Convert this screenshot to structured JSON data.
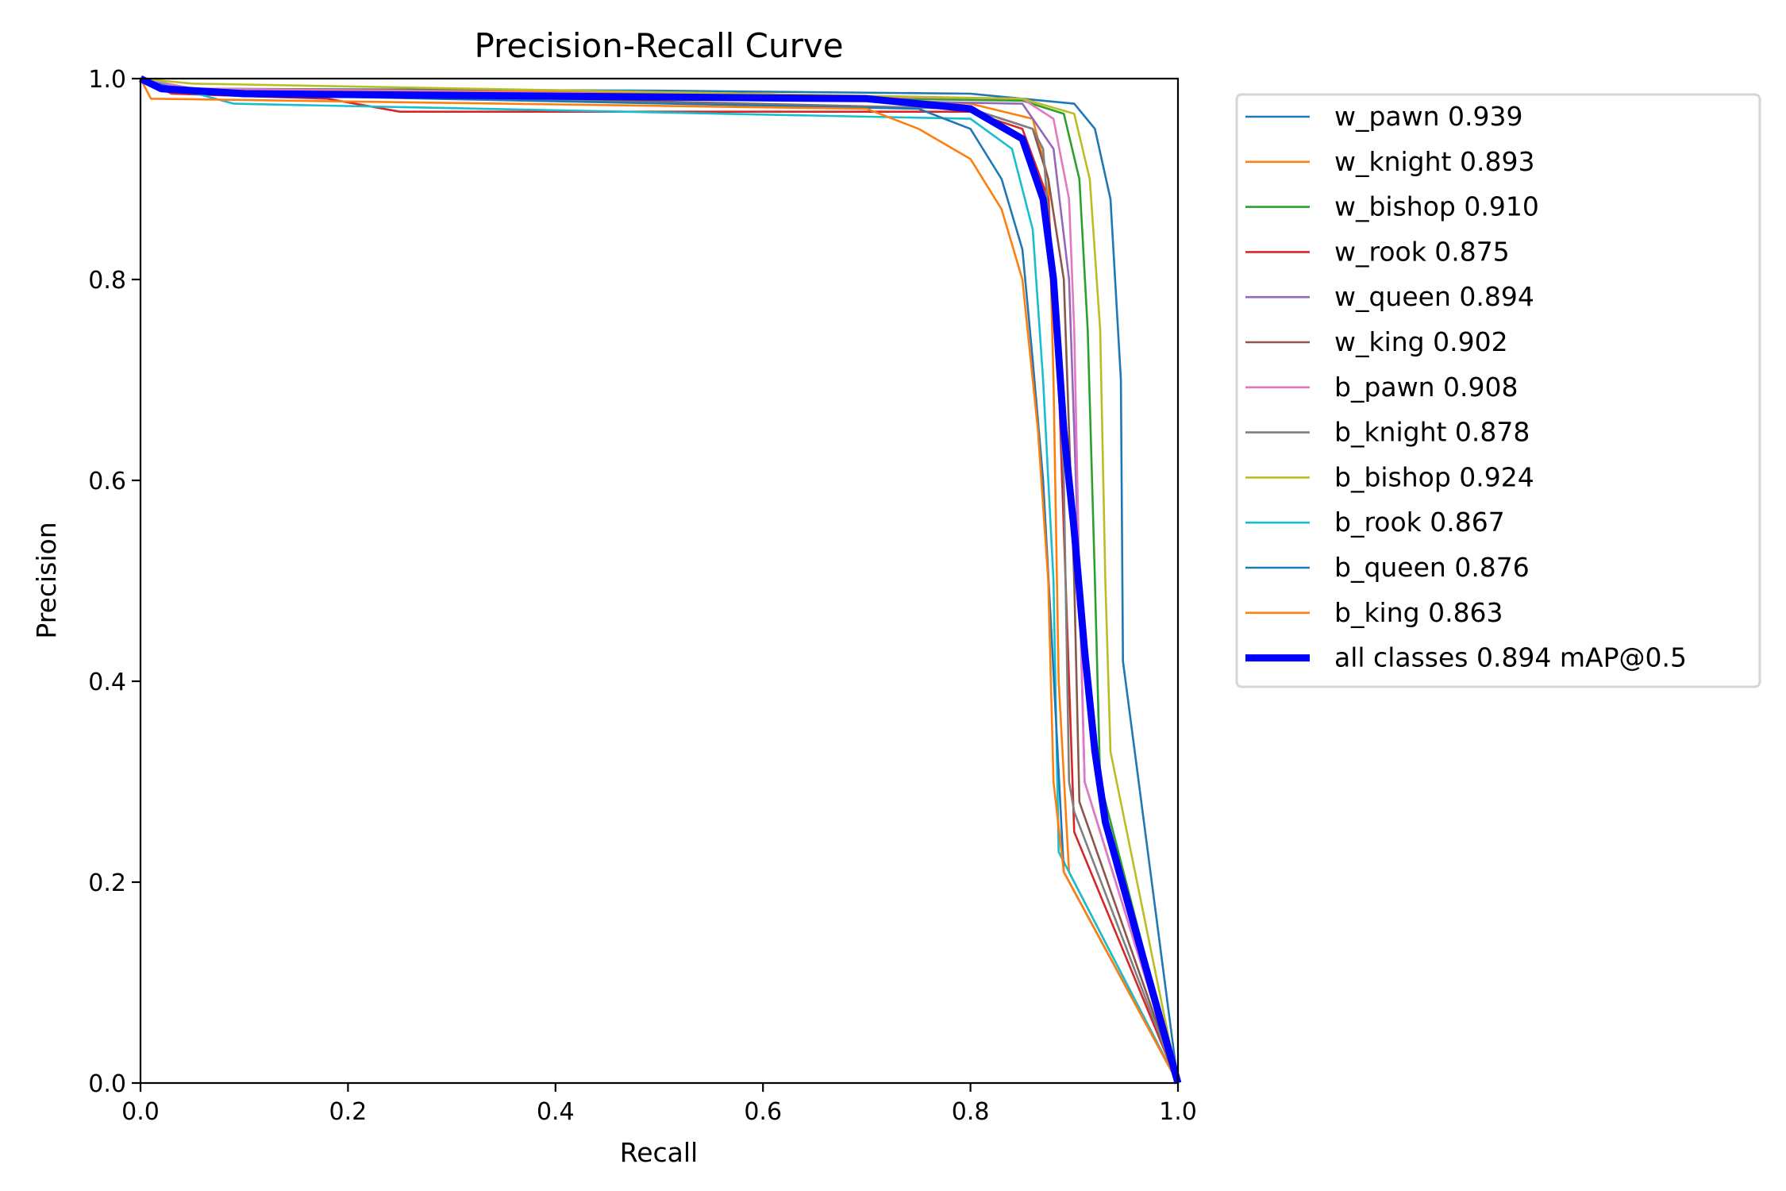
{
  "chart_data": {
    "type": "line",
    "title": "Precision-Recall Curve",
    "xlabel": "Recall",
    "ylabel": "Precision",
    "xlim": [
      0,
      1
    ],
    "ylim": [
      0,
      1
    ],
    "xticks": [
      "0.0",
      "0.2",
      "0.4",
      "0.6",
      "0.8",
      "1.0"
    ],
    "yticks": [
      "0.0",
      "0.2",
      "0.4",
      "0.6",
      "0.8",
      "1.0"
    ],
    "grid": false,
    "legend_position": "outside-right",
    "series": [
      {
        "name": "w_pawn 0.939",
        "color": "#1f77b4",
        "points": [
          [
            0,
            1
          ],
          [
            0.05,
            0.99
          ],
          [
            0.5,
            0.988
          ],
          [
            0.8,
            0.985
          ],
          [
            0.9,
            0.975
          ],
          [
            0.92,
            0.95
          ],
          [
            0.935,
            0.88
          ],
          [
            0.945,
            0.7
          ],
          [
            0.947,
            0.42
          ],
          [
            1,
            0
          ]
        ]
      },
      {
        "name": "w_knight 0.893",
        "color": "#ff7f0e",
        "points": [
          [
            0,
            1
          ],
          [
            0.05,
            0.99
          ],
          [
            0.6,
            0.985
          ],
          [
            0.8,
            0.975
          ],
          [
            0.86,
            0.96
          ],
          [
            0.875,
            0.9
          ],
          [
            0.88,
            0.7
          ],
          [
            0.885,
            0.4
          ],
          [
            0.895,
            0.21
          ],
          [
            1,
            0
          ]
        ]
      },
      {
        "name": "w_bishop 0.910",
        "color": "#2ca02c",
        "points": [
          [
            0,
            1
          ],
          [
            0.05,
            0.99
          ],
          [
            0.85,
            0.978
          ],
          [
            0.89,
            0.965
          ],
          [
            0.905,
            0.9
          ],
          [
            0.913,
            0.75
          ],
          [
            0.92,
            0.5
          ],
          [
            0.925,
            0.3
          ],
          [
            1,
            0
          ]
        ]
      },
      {
        "name": "w_rook 0.875",
        "color": "#d62728",
        "points": [
          [
            0,
            1
          ],
          [
            0.03,
            0.985
          ],
          [
            0.18,
            0.98
          ],
          [
            0.25,
            0.967
          ],
          [
            0.8,
            0.967
          ],
          [
            0.85,
            0.95
          ],
          [
            0.875,
            0.88
          ],
          [
            0.885,
            0.7
          ],
          [
            0.895,
            0.4
          ],
          [
            0.9,
            0.25
          ],
          [
            1,
            0
          ]
        ]
      },
      {
        "name": "w_queen 0.894",
        "color": "#9467bd",
        "points": [
          [
            0,
            1
          ],
          [
            0.05,
            0.99
          ],
          [
            0.85,
            0.975
          ],
          [
            0.88,
            0.93
          ],
          [
            0.895,
            0.8
          ],
          [
            0.905,
            0.5
          ],
          [
            0.91,
            0.3
          ],
          [
            1,
            0
          ]
        ]
      },
      {
        "name": "w_king 0.902",
        "color": "#8c564b",
        "points": [
          [
            0,
            1
          ],
          [
            0.05,
            0.988
          ],
          [
            0.8,
            0.97
          ],
          [
            0.86,
            0.95
          ],
          [
            0.875,
            0.9
          ],
          [
            0.89,
            0.8
          ],
          [
            0.9,
            0.5
          ],
          [
            0.905,
            0.28
          ],
          [
            1,
            0
          ]
        ]
      },
      {
        "name": "b_pawn 0.908",
        "color": "#e377c2",
        "points": [
          [
            0,
            1
          ],
          [
            0.05,
            0.99
          ],
          [
            0.85,
            0.98
          ],
          [
            0.88,
            0.96
          ],
          [
            0.895,
            0.88
          ],
          [
            0.9,
            0.75
          ],
          [
            0.905,
            0.5
          ],
          [
            0.91,
            0.3
          ],
          [
            1,
            0
          ]
        ]
      },
      {
        "name": "b_knight 0.878",
        "color": "#7f7f7f",
        "points": [
          [
            0,
            1
          ],
          [
            0.05,
            0.985
          ],
          [
            0.8,
            0.97
          ],
          [
            0.86,
            0.95
          ],
          [
            0.87,
            0.93
          ],
          [
            0.88,
            0.8
          ],
          [
            0.89,
            0.6
          ],
          [
            0.895,
            0.3
          ],
          [
            0.9,
            0.27
          ],
          [
            1,
            0
          ]
        ]
      },
      {
        "name": "b_bishop 0.924",
        "color": "#bcbd22",
        "points": [
          [
            0,
            1
          ],
          [
            0.05,
            0.995
          ],
          [
            0.85,
            0.98
          ],
          [
            0.9,
            0.965
          ],
          [
            0.915,
            0.9
          ],
          [
            0.925,
            0.75
          ],
          [
            0.93,
            0.5
          ],
          [
            0.935,
            0.33
          ],
          [
            1,
            0
          ]
        ]
      },
      {
        "name": "b_rook 0.867",
        "color": "#17becf",
        "points": [
          [
            0,
            1
          ],
          [
            0.09,
            0.975
          ],
          [
            0.8,
            0.96
          ],
          [
            0.84,
            0.93
          ],
          [
            0.86,
            0.85
          ],
          [
            0.87,
            0.7
          ],
          [
            0.88,
            0.5
          ],
          [
            0.885,
            0.23
          ],
          [
            1,
            0
          ]
        ]
      },
      {
        "name": "b_queen 0.876",
        "color": "#1f77b4",
        "points": [
          [
            0,
            1
          ],
          [
            0.05,
            0.985
          ],
          [
            0.75,
            0.97
          ],
          [
            0.8,
            0.95
          ],
          [
            0.83,
            0.9
          ],
          [
            0.85,
            0.83
          ],
          [
            0.86,
            0.72
          ],
          [
            0.87,
            0.6
          ],
          [
            0.878,
            0.45
          ],
          [
            0.89,
            0.21
          ],
          [
            1,
            0
          ]
        ]
      },
      {
        "name": "b_king 0.863",
        "color": "#ff7f0e",
        "points": [
          [
            0,
            1
          ],
          [
            0.01,
            0.98
          ],
          [
            0.7,
            0.97
          ],
          [
            0.75,
            0.95
          ],
          [
            0.8,
            0.92
          ],
          [
            0.83,
            0.87
          ],
          [
            0.85,
            0.8
          ],
          [
            0.865,
            0.65
          ],
          [
            0.875,
            0.5
          ],
          [
            0.88,
            0.3
          ],
          [
            0.89,
            0.21
          ],
          [
            1,
            0
          ]
        ]
      },
      {
        "name": "all classes 0.894 mAP@0.5",
        "color": "#0000ff",
        "bold": true,
        "points": [
          [
            0,
            1
          ],
          [
            0.02,
            0.99
          ],
          [
            0.1,
            0.985
          ],
          [
            0.7,
            0.98
          ],
          [
            0.8,
            0.97
          ],
          [
            0.85,
            0.94
          ],
          [
            0.87,
            0.88
          ],
          [
            0.88,
            0.8
          ],
          [
            0.89,
            0.65
          ],
          [
            0.9,
            0.55
          ],
          [
            0.91,
            0.43
          ],
          [
            0.92,
            0.33
          ],
          [
            0.93,
            0.26
          ],
          [
            1,
            0
          ]
        ]
      }
    ]
  }
}
